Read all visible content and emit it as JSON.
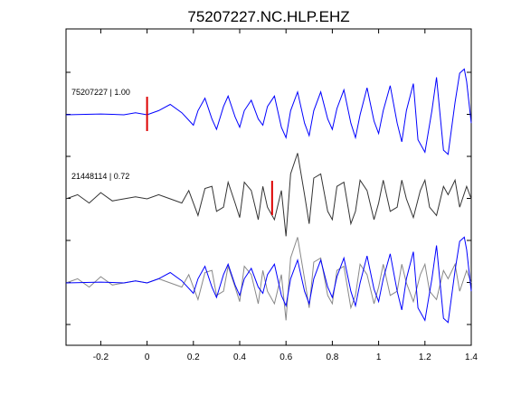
{
  "chart_data": {
    "type": "line",
    "title": "75207227.NC.HLP.EHZ",
    "xlim": [
      -0.35,
      1.4
    ],
    "x_ticks": [
      "-0.2",
      "0",
      "0.2",
      "0.4",
      "0.6",
      "0.8",
      "1",
      "1.2",
      "1.4"
    ],
    "x_tick_values": [
      -0.2,
      0,
      0.2,
      0.4,
      0.6,
      0.8,
      1.0,
      1.2,
      1.4
    ],
    "y_tick_count": 7,
    "grid": false,
    "colors": {
      "blue": "#0000ff",
      "black": "#333333",
      "gray": "#888888",
      "pick": "#dd0000",
      "axis": "#000000"
    },
    "series": [
      {
        "name": "75207227 | 1.00",
        "color": "#0000ff",
        "row": 0,
        "pick_time": 0.0,
        "x": [
          -0.35,
          -0.2,
          -0.1,
          -0.05,
          0,
          0.05,
          0.1,
          0.15,
          0.2,
          0.22,
          0.25,
          0.28,
          0.3,
          0.33,
          0.35,
          0.38,
          0.4,
          0.42,
          0.45,
          0.48,
          0.5,
          0.52,
          0.55,
          0.58,
          0.6,
          0.62,
          0.65,
          0.68,
          0.7,
          0.72,
          0.75,
          0.78,
          0.8,
          0.82,
          0.85,
          0.88,
          0.9,
          0.92,
          0.95,
          0.98,
          1.0,
          1.02,
          1.05,
          1.08,
          1.1,
          1.12,
          1.15,
          1.17,
          1.2,
          1.23,
          1.25,
          1.28,
          1.3,
          1.33,
          1.35,
          1.37,
          1.38,
          1.4
        ],
        "y": [
          0.0,
          0.02,
          0.0,
          0.05,
          0.0,
          0.1,
          0.25,
          0.05,
          -0.25,
          0.1,
          0.4,
          -0.1,
          -0.35,
          0.2,
          0.45,
          -0.05,
          -0.3,
          0.1,
          0.35,
          -0.1,
          -0.25,
          0.2,
          0.45,
          -0.3,
          -0.55,
          0.1,
          0.55,
          -0.2,
          -0.5,
          0.1,
          0.55,
          -0.1,
          -0.35,
          0.15,
          0.6,
          -0.2,
          -0.55,
          0.0,
          0.65,
          -0.15,
          -0.45,
          0.1,
          0.7,
          -0.2,
          -0.65,
          0.1,
          0.75,
          -0.6,
          -0.9,
          0.1,
          0.9,
          -0.85,
          -0.95,
          0.3,
          1.0,
          1.1,
          0.8,
          -0.2
        ]
      },
      {
        "name": "21448114 | 0.72",
        "color": "#333333",
        "row": 1,
        "pick_time": 0.54,
        "x": [
          -0.35,
          -0.3,
          -0.25,
          -0.2,
          -0.15,
          -0.1,
          -0.05,
          0,
          0.05,
          0.1,
          0.15,
          0.18,
          0.22,
          0.25,
          0.28,
          0.3,
          0.33,
          0.35,
          0.38,
          0.4,
          0.42,
          0.45,
          0.48,
          0.5,
          0.52,
          0.55,
          0.58,
          0.6,
          0.62,
          0.65,
          0.68,
          0.7,
          0.72,
          0.75,
          0.78,
          0.8,
          0.82,
          0.85,
          0.88,
          0.9,
          0.92,
          0.95,
          0.98,
          1.0,
          1.02,
          1.05,
          1.08,
          1.1,
          1.12,
          1.15,
          1.18,
          1.2,
          1.22,
          1.25,
          1.28,
          1.3,
          1.33,
          1.35,
          1.38,
          1.4
        ],
        "y": [
          0.0,
          0.1,
          -0.1,
          0.15,
          -0.05,
          0.0,
          0.05,
          0.0,
          0.1,
          0.0,
          -0.1,
          0.2,
          -0.4,
          0.25,
          0.3,
          -0.3,
          -0.2,
          0.4,
          -0.1,
          -0.45,
          0.4,
          0.2,
          -0.5,
          0.3,
          -0.2,
          -0.5,
          0.2,
          -0.9,
          0.6,
          1.1,
          0.1,
          -0.6,
          0.5,
          0.6,
          -0.3,
          -0.5,
          0.3,
          0.4,
          -0.6,
          -0.3,
          0.45,
          0.2,
          -0.5,
          -0.1,
          0.45,
          -0.3,
          -0.2,
          0.45,
          0.0,
          -0.45,
          0.2,
          0.45,
          -0.2,
          -0.4,
          0.3,
          0.1,
          0.45,
          -0.2,
          0.3,
          0.0
        ]
      }
    ],
    "overlay": {
      "row": 2,
      "traces": [
        "75207227 | 1.00",
        "21448114 | 0.72"
      ],
      "colors": [
        "#0000ff",
        "#888888"
      ]
    }
  }
}
